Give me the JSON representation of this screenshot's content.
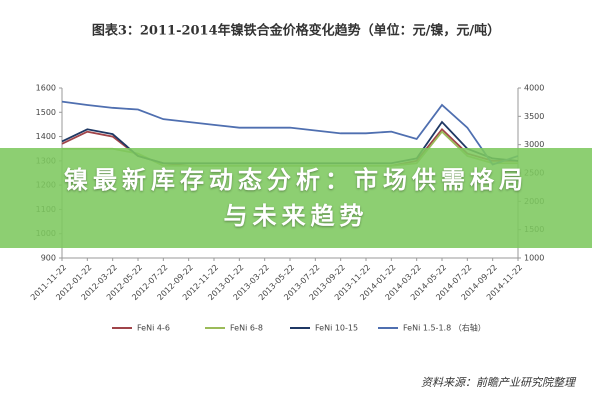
{
  "chart_data": {
    "type": "line",
    "title": "图表3：2011-2014年镍铁合金价格变化趋势（单位：元/镍，元/吨）",
    "categories": [
      "2011-11-22",
      "2012-01-22",
      "2012-03-22",
      "2012-05-22",
      "2012-07-22",
      "2012-09-22",
      "2012-11-22",
      "2013-01-22",
      "2013-03-22",
      "2013-05-22",
      "2013-07-22",
      "2013-09-22",
      "2013-11-22",
      "2014-01-22",
      "2014-03-22",
      "2014-05-22",
      "2014-07-22",
      "2014-09-22",
      "2014-11-22"
    ],
    "series": [
      {
        "name": "FeNi 4-6",
        "color": "#a0444a",
        "values": [
          1370,
          1420,
          1400,
          1320,
          1290,
          1280,
          1280,
          1280,
          1280,
          1280,
          1280,
          1280,
          1280,
          1280,
          1300,
          1430,
          1330,
          1300,
          1300
        ]
      },
      {
        "name": "FeNi 6-8",
        "color": "#9bbb59",
        "values": [
          1350,
          1350,
          1350,
          1330,
          1280,
          1280,
          1280,
          1280,
          1280,
          1280,
          1280,
          1280,
          1280,
          1280,
          1290,
          1420,
          1320,
          1290,
          1290
        ]
      },
      {
        "name": "FeNi 10-15",
        "color": "#1f3864",
        "values": [
          1380,
          1430,
          1410,
          1320,
          1290,
          1290,
          1290,
          1290,
          1290,
          1290,
          1290,
          1290,
          1290,
          1290,
          1310,
          1460,
          1350,
          1310,
          1300
        ]
      },
      {
        "name": "FeNi 1.5-1.8 （右轴）",
        "color": "#4f6fb0",
        "axis": "y2",
        "values": [
          3760,
          3700,
          3650,
          3620,
          3450,
          3400,
          3350,
          3300,
          3300,
          3300,
          3250,
          3200,
          3200,
          3230,
          3100,
          3700,
          3300,
          2650,
          2800
        ]
      }
    ],
    "ylim": [
      900,
      1600
    ],
    "yticks": [
      900,
      1000,
      1100,
      1200,
      1300,
      1400,
      1500,
      1600
    ],
    "y2lim": [
      1000,
      4000
    ],
    "y2ticks": [
      1000,
      1500,
      2000,
      2500,
      3000,
      3500,
      4000
    ],
    "source": "资料来源：前瞻产业研究院整理"
  },
  "overlay": {
    "headline": [
      "镍最新库存动态分析：市场供需格局",
      "与未来趋势"
    ]
  }
}
